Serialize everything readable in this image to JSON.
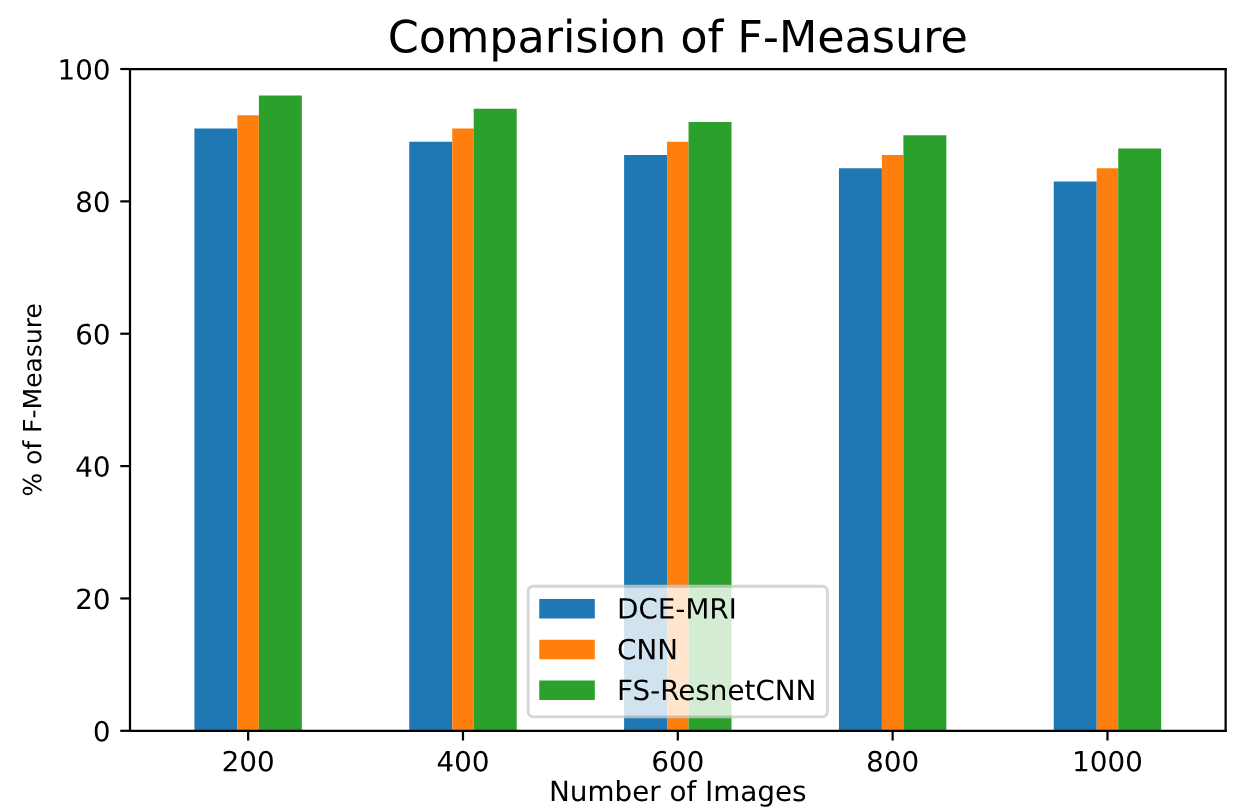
{
  "chart_data": {
    "type": "bar",
    "title": "Comparision of F-Measure",
    "xlabel": "Number of Images",
    "ylabel": "% of F-Measure",
    "categories": [
      "200",
      "400",
      "600",
      "800",
      "1000"
    ],
    "series": [
      {
        "name": "DCE-MRI",
        "color": "#1f77b4",
        "values": [
          91,
          89,
          87,
          85,
          83
        ]
      },
      {
        "name": "CNN",
        "color": "#ff7f0e",
        "values": [
          93,
          91,
          89,
          87,
          85
        ]
      },
      {
        "name": "FS-ResnetCNN",
        "color": "#2ca02c",
        "values": [
          96,
          94,
          92,
          90,
          88
        ]
      }
    ],
    "ylim": [
      0,
      100
    ],
    "yticks": [
      0,
      20,
      40,
      60,
      80,
      100
    ],
    "legend": "bottom",
    "grid": false
  }
}
